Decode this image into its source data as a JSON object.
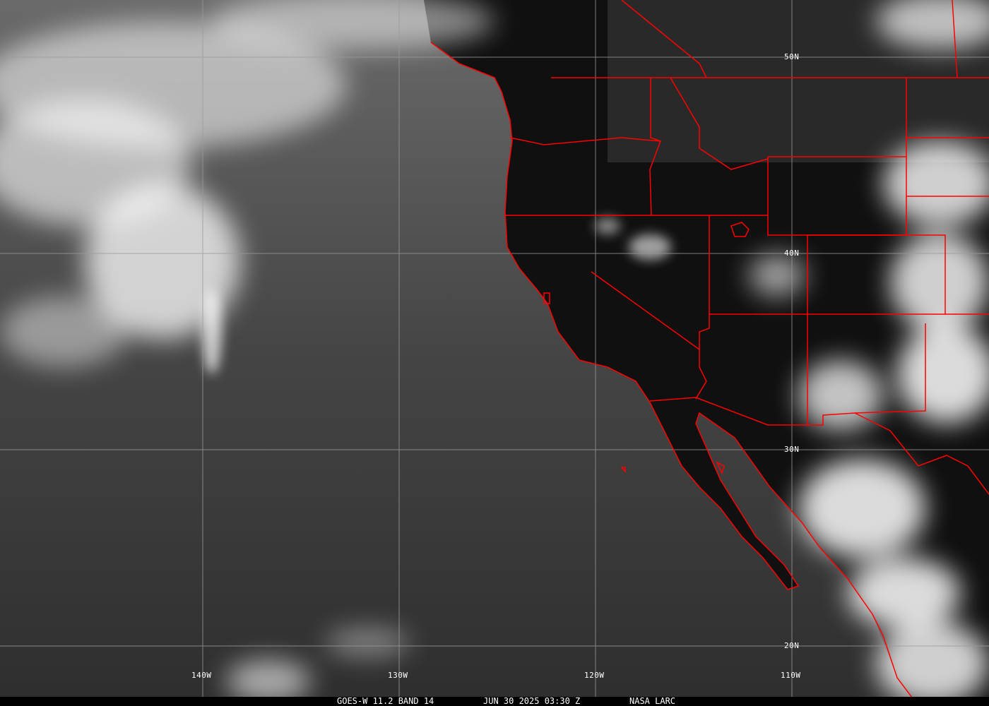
{
  "caption": {
    "satellite": "GOES-W 11.2 BAND 14",
    "datetime": "JUN 30 2025 03:30 Z",
    "credit": "NASA LARC"
  },
  "longitude_labels": [
    "140W",
    "130W",
    "120W",
    "110W"
  ],
  "latitude_labels": [
    "50N",
    "40N",
    "30N",
    "20N"
  ],
  "colors": {
    "borders": "#ff0000",
    "grid": "#9a9a9a",
    "land": "#0a0a0a",
    "ocean": "#3c3c3c",
    "cloud": "#ffffff"
  }
}
